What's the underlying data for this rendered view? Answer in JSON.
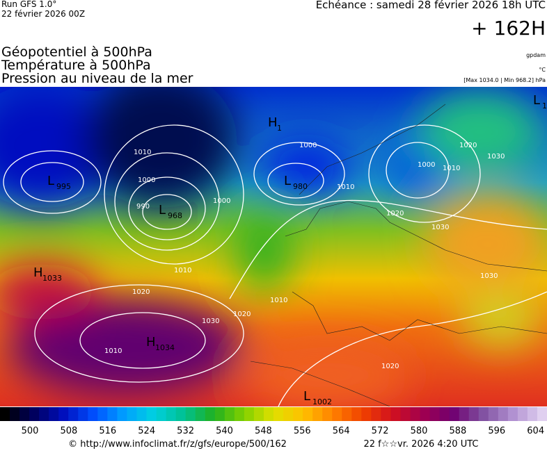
{
  "header": {
    "run": "Run GFS 1.0°",
    "run_date": "22 février 2026 00Z",
    "echeance": "Echéance : samedi 28 février 2026 18h UTC",
    "lead": "+ 162H",
    "titles": [
      "Géopotentiel à 500hPa",
      "Température à 500hPa",
      "Pression au niveau de la mer"
    ],
    "units": [
      "gpdam",
      "°C",
      "[Max 1034.0 | Min 968.2] hPa"
    ]
  },
  "map": {
    "centers": [
      {
        "letter": "L",
        "value": 995
      },
      {
        "letter": "L",
        "value": 968
      },
      {
        "letter": "L",
        "value": 980
      },
      {
        "letter": "H",
        "value": 1033
      },
      {
        "letter": "H",
        "value": 1034
      },
      {
        "letter": "L",
        "value": 1002
      },
      {
        "letter": "H",
        "value": 1
      },
      {
        "letter": "L",
        "value": 1
      }
    ],
    "isobar_labels": [
      1010,
      1000,
      990,
      1000,
      1020,
      1010,
      1000,
      1010,
      1020,
      1030,
      1030,
      1020,
      1010,
      1000,
      1010,
      1020,
      1030,
      1010,
      1030,
      1020
    ]
  },
  "colorbar": {
    "labels": [
      500,
      508,
      516,
      524,
      532,
      540,
      548,
      556,
      564,
      572,
      580,
      588,
      596,
      604
    ]
  },
  "footer": {
    "url": "© http://www.infoclimat.fr/z/gfs/europe/500/162",
    "timestamp": "22 f☆☆vr. 2026  4:20 UTC"
  }
}
